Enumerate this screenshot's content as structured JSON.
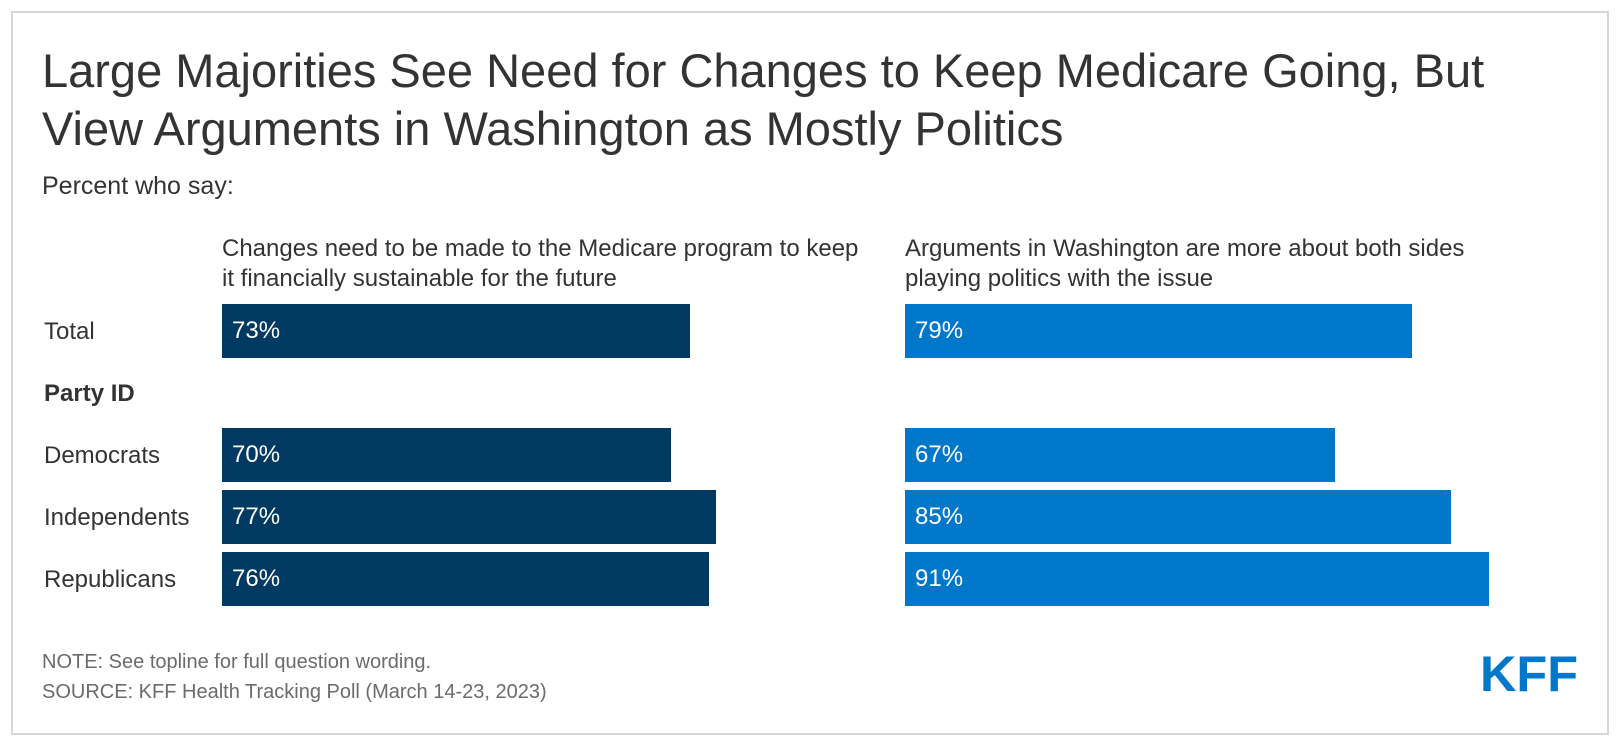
{
  "title": "Large Majorities See Need for Changes to Keep Medicare Going, But View Arguments in Washington as Mostly Politics",
  "subtitle": "Percent who say:",
  "note": "NOTE: See topline for full question wording.",
  "source": "SOURCE: KFF Health Tracking Poll (March 14-23, 2023)",
  "logo_text": "KFF",
  "colors": {
    "left_series": "#003a63",
    "right_series": "#0077c8",
    "logo": "#0077c8",
    "text": "#333333",
    "footnote": "#6b6b6b"
  },
  "rows": {
    "total": "Total",
    "group_header": "Party ID",
    "democrats": "Democrats",
    "independents": "Independents",
    "republicans": "Republicans"
  },
  "chart_data": [
    {
      "type": "bar",
      "orientation": "horizontal",
      "title": "Changes need to be made to the Medicare program to keep it financially sustainable for the future",
      "categories": [
        "Total",
        "Democrats",
        "Independents",
        "Republicans"
      ],
      "values": [
        73,
        70,
        77,
        76
      ],
      "value_labels": [
        "73%",
        "70%",
        "77%",
        "76%"
      ],
      "xlim": [
        0,
        100
      ],
      "grid": false
    },
    {
      "type": "bar",
      "orientation": "horizontal",
      "title": "Arguments in Washington are more about both sides playing politics with the issue",
      "categories": [
        "Total",
        "Democrats",
        "Independents",
        "Republicans"
      ],
      "values": [
        79,
        67,
        85,
        91
      ],
      "value_labels": [
        "79%",
        "67%",
        "85%",
        "91%"
      ],
      "xlim": [
        0,
        100
      ],
      "grid": false
    }
  ]
}
